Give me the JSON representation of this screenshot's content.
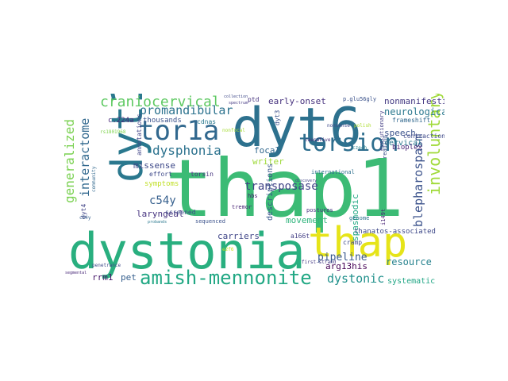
{
  "word_cloud": {
    "words": [
      {
        "text": "thap1",
        "color": "#3cbb75"
      },
      {
        "text": "dyt6",
        "color": "#2d718e"
      },
      {
        "text": "dystonia",
        "color": "#29af7f"
      },
      {
        "text": "thap",
        "color": "#e6e419"
      },
      {
        "text": "dyt1",
        "color": "#2a788e"
      },
      {
        "text": "torsion",
        "color": "#2e6e8e"
      },
      {
        "text": "tor1a",
        "color": "#31688e"
      },
      {
        "text": "amish-mennonite",
        "color": "#22a884"
      },
      {
        "text": "craniocervical",
        "color": "#5ec962"
      },
      {
        "text": "dysphonia",
        "color": "#2c728e"
      },
      {
        "text": "involuntary",
        "color": "#a0da39"
      },
      {
        "text": "blepharospasm",
        "color": "#3b528b"
      },
      {
        "text": "generalized",
        "color": "#7ad151"
      },
      {
        "text": "interactome",
        "color": "#31688e"
      },
      {
        "text": "oromandibular",
        "color": "#2c728e"
      },
      {
        "text": "dystonic",
        "color": "#21918c"
      },
      {
        "text": "transposase",
        "color": "#414487"
      },
      {
        "text": "c54y",
        "color": "#355f8d"
      },
      {
        "text": "pipeline",
        "color": "#38588c"
      },
      {
        "text": "resource",
        "color": "#26828e"
      },
      {
        "text": "neurologically",
        "color": "#2a788e"
      },
      {
        "text": "nonmanifesting",
        "color": "#443983"
      },
      {
        "text": "early-onset",
        "color": "#46327e"
      },
      {
        "text": "laryngeal",
        "color": "#46337f"
      },
      {
        "text": "missense",
        "color": "#3e4989"
      },
      {
        "text": "movement",
        "color": "#2fb47c"
      },
      {
        "text": "spasmodic",
        "color": "#22a884"
      },
      {
        "text": "cervical",
        "color": "#2a788e"
      },
      {
        "text": "speech",
        "color": "#3b528b"
      },
      {
        "text": "focal",
        "color": "#31688e"
      },
      {
        "text": "writer",
        "color": "#9fda3a"
      },
      {
        "text": "carriers",
        "color": "#404688"
      },
      {
        "text": "thanatos-associated",
        "color": "#3e4989"
      },
      {
        "text": "arg13his",
        "color": "#440154"
      },
      {
        "text": "rrm1",
        "color": "#481a6c"
      },
      {
        "text": "pet",
        "color": "#355f8d"
      },
      {
        "text": "systematic",
        "color": "#21a685"
      },
      {
        "text": "descriptions",
        "color": "#39568c"
      },
      {
        "text": "symptoms",
        "color": "#c0df25"
      },
      {
        "text": "thousands",
        "color": "#3b528b"
      },
      {
        "text": "cdnas",
        "color": "#2a788e"
      },
      {
        "text": "c.224a",
        "color": "#482878"
      },
      {
        "text": "annotations",
        "color": "#414487"
      },
      {
        "text": "bioplex",
        "color": "#482475"
      },
      {
        "text": "frameshift",
        "color": "#31688e"
      },
      {
        "text": "contractions",
        "color": "#3e4989"
      },
      {
        "text": "international",
        "color": "#2d708e"
      },
      {
        "text": "screened",
        "color": "#3e4989"
      },
      {
        "text": "sequenced",
        "color": "#3b528b"
      },
      {
        "text": "torsin",
        "color": "#46337f"
      },
      {
        "text": "hbs",
        "color": "#481a6c"
      },
      {
        "text": "tremor",
        "color": "#482475"
      },
      {
        "text": "a166t",
        "color": "#433e85"
      },
      {
        "text": "cramp",
        "color": "#3e4989"
      },
      {
        "text": "genome",
        "color": "#2c728e"
      },
      {
        "text": "postures",
        "color": "#46327e"
      },
      {
        "text": "effort",
        "color": "#3e4989"
      },
      {
        "text": "ptd",
        "color": "#46337f"
      },
      {
        "text": "dyt3",
        "color": "#3b528b"
      },
      {
        "text": "dyt4",
        "color": "#414487"
      },
      {
        "text": "c54y",
        "color": "#355f8d"
      },
      {
        "text": "penetrance",
        "color": "#3e4989"
      },
      {
        "text": "segmental",
        "color": "#482878"
      },
      {
        "text": "causative",
        "color": "#472d7b"
      },
      {
        "text": "nonsense",
        "color": "#3e4989"
      },
      {
        "text": "polish",
        "color": "#addc30"
      },
      {
        "text": "reading",
        "color": "#3b528b"
      },
      {
        "text": "i149t",
        "color": "#482475"
      },
      {
        "text": "p.glu56gly",
        "color": "#3b528b"
      },
      {
        "text": "e2f6",
        "color": "#c8e020"
      },
      {
        "text": "rs1801968",
        "color": "#7fd34e"
      },
      {
        "text": "first-strand",
        "color": "#443983"
      },
      {
        "text": "evolutionary",
        "color": "#433e85"
      },
      {
        "text": "czech",
        "color": "#26828e"
      },
      {
        "text": "community",
        "color": "#31688e"
      },
      {
        "text": "nonfocal",
        "color": "#a5db36"
      },
      {
        "text": "probands",
        "color": "#2a788e"
      },
      {
        "text": "collection",
        "color": "#3e4989"
      },
      {
        "text": "spectrum",
        "color": "#443983"
      },
      {
        "text": "discovery",
        "color": "#414487"
      },
      {
        "text": "identified",
        "color": "#6ccd5a"
      }
    ]
  }
}
